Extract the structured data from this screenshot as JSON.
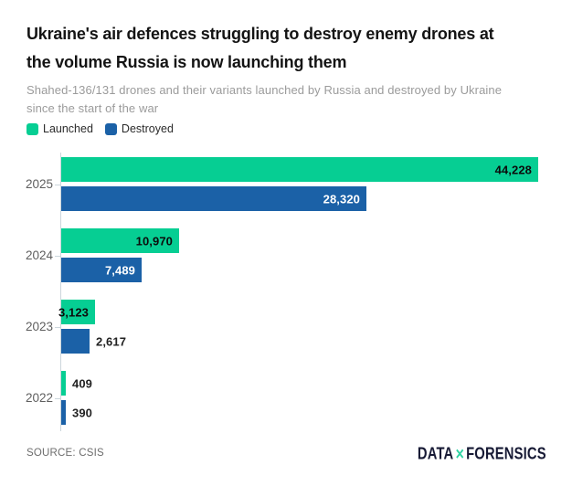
{
  "header": {
    "title_line1": "Ukraine's air defences struggling to destroy enemy drones at",
    "title_line2": "the volume Russia is now launching them",
    "subtitle_line1": "Shahed-136/131 drones and their variants launched by Russia and destroyed by Ukraine",
    "subtitle_line2": "since the start of the war"
  },
  "legend": {
    "items": [
      {
        "label": "Launched",
        "color": "#06CE93"
      },
      {
        "label": "Destroyed",
        "color": "#1B61A7"
      }
    ]
  },
  "chart_data": {
    "type": "bar",
    "orientation": "horizontal",
    "title": "Ukraine's air defences struggling to destroy enemy drones at the volume Russia is now launching them",
    "subtitle": "Shahed-136/131 drones and their variants launched by Russia and destroyed by Ukraine since the start of the war",
    "categories": [
      "2025",
      "2024",
      "2023",
      "2022"
    ],
    "xmax": 44228,
    "grid": false,
    "legend_position": "top",
    "series": [
      {
        "name": "Launched",
        "color": "#06CE93",
        "values": [
          44228,
          10970,
          3123,
          409
        ],
        "labels": [
          "44,228",
          "10,970",
          "3,123",
          "409"
        ],
        "label_placement": [
          "inside",
          "inside",
          "inside",
          "outside"
        ],
        "label_color_inside": "#0c0c0c"
      },
      {
        "name": "Destroyed",
        "color": "#1B61A7",
        "values": [
          28320,
          7489,
          2617,
          390
        ],
        "labels": [
          "28,320",
          "7,489",
          "2,617",
          "390"
        ],
        "label_placement": [
          "inside",
          "inside",
          "outside",
          "outside"
        ],
        "label_color_inside": "#ffffff"
      }
    ]
  },
  "footer": {
    "source": "SOURCE: CSIS",
    "logo": {
      "part1": "DATA",
      "x": "✕",
      "part2": "FORENSICS",
      "text_color": "#171A35",
      "x_color": "#2FD3A3"
    }
  }
}
